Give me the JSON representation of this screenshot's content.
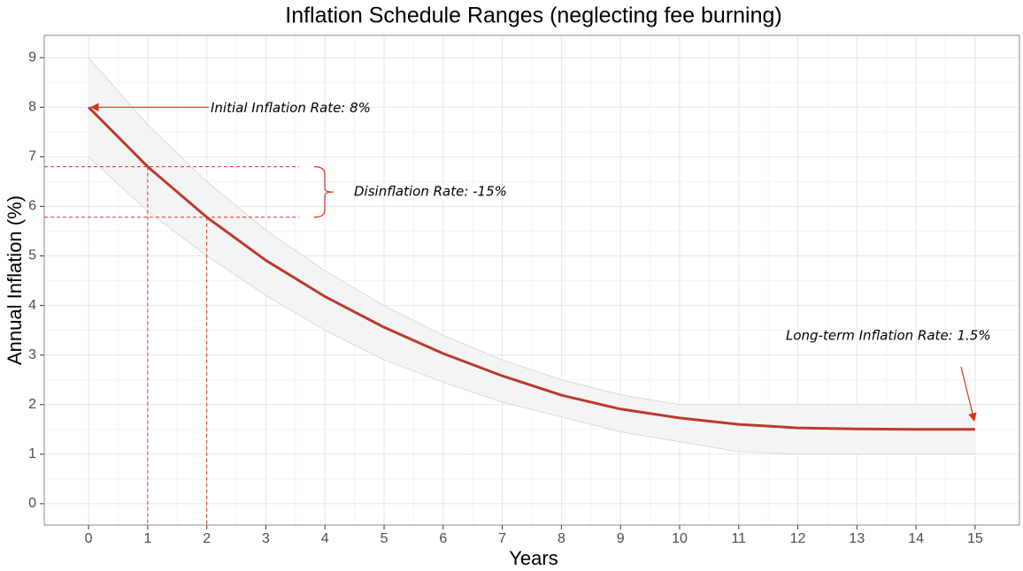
{
  "chart_data": {
    "type": "line",
    "title": "Inflation Schedule Ranges (neglecting fee burning)",
    "x_label": "Years",
    "y_label": "Annual Inflation (%)",
    "x": [
      0,
      1,
      2,
      3,
      4,
      5,
      6,
      7,
      8,
      9,
      10,
      11,
      12,
      13,
      14,
      15
    ],
    "series": [
      {
        "color": "#bb3a2c",
        "values": [
          8,
          6.8,
          5.78,
          4.91,
          4.18,
          3.56,
          3.03,
          2.58,
          2.19,
          1.91,
          1.73,
          1.6,
          1.53,
          1.51,
          1.5,
          1.5
        ]
      }
    ],
    "band": {
      "color": "#f4f4f4",
      "upper": [
        9,
        7.65,
        6.5,
        5.52,
        4.7,
        4.0,
        3.4,
        2.9,
        2.5,
        2.2,
        2.0,
        2,
        2,
        2,
        2,
        2
      ],
      "lower": [
        7,
        5.9,
        5.0,
        4.2,
        3.5,
        2.9,
        2.45,
        2.05,
        1.75,
        1.45,
        1.25,
        1.05,
        1,
        1,
        1,
        1
      ]
    },
    "annotations": {
      "initial": "Initial Inflation Rate: 8%",
      "disinflation": "Disinflation Rate: -15%",
      "long_term": "Long-term Inflation Rate: 1.5%"
    },
    "xlim": [
      -0.75,
      15.75
    ],
    "ylim": [
      -0.43,
      9.45
    ],
    "xticks": [
      0,
      1,
      2,
      3,
      4,
      5,
      6,
      7,
      8,
      9,
      10,
      11,
      12,
      13,
      14,
      15
    ],
    "yticks": [
      0,
      1,
      2,
      3,
      4,
      5,
      6,
      7,
      8,
      9
    ],
    "grid": true
  }
}
